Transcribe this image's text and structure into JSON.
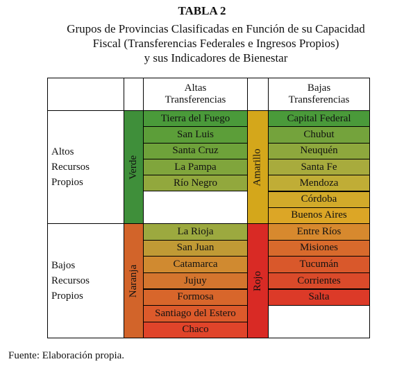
{
  "header": {
    "title": "TABLA 2",
    "subtitle": [
      "Grupos de Provincias Clasificadas en Función de su Capacidad",
      "Fiscal (Transferencias Federales e Ingresos Propios)",
      "y sus Indicadores de Bienestar"
    ]
  },
  "table": {
    "column_headers": [
      [
        "Altas",
        "Transferencias"
      ],
      [
        "Bajas",
        "Transferencias"
      ]
    ],
    "groups": [
      {
        "label": "Altos Recursos Propios",
        "left": {
          "band": {
            "label": "Verde",
            "color": "#3f8f3a"
          },
          "cells": [
            {
              "text": "Tierra del Fuego",
              "color": "#4a9a3a"
            },
            {
              "text": "San Luis",
              "color": "#5c9e39"
            },
            {
              "text": "Santa Cruz",
              "color": "#6ea23a"
            },
            {
              "text": "La Pampa",
              "color": "#80a53c"
            },
            {
              "text": "Río Negro",
              "color": "#92a83d"
            }
          ]
        },
        "right": {
          "band": {
            "label": "Amarillo",
            "color": "#d4a71b"
          },
          "cells": [
            {
              "text": "Capital Federal",
              "color": "#4a9a3a"
            },
            {
              "text": "Chubut",
              "color": "#74a33c"
            },
            {
              "text": "Neuquén",
              "color": "#8ea83d"
            },
            {
              "text": "Santa Fe",
              "color": "#a8ab3d"
            },
            {
              "text": "Mendoza",
              "color": "#c0ad36"
            },
            {
              "text": "Córdoba",
              "color": "#d2aa2a"
            },
            {
              "text": "Buenos Aires",
              "color": "#dca626"
            }
          ]
        }
      },
      {
        "label": "Bajos Recursos Propios",
        "left": {
          "band": {
            "label": "Naranja",
            "color": "#d2642a"
          },
          "cells": [
            {
              "text": "La Rioja",
              "color": "#9ca93f"
            },
            {
              "text": "San Juan",
              "color": "#c09a35"
            },
            {
              "text": "Catamarca",
              "color": "#d08a30"
            },
            {
              "text": "Jujuy",
              "color": "#d4752e"
            },
            {
              "text": "Formosa",
              "color": "#d8662b"
            },
            {
              "text": "Santiago del Estero",
              "color": "#dc5a2b"
            },
            {
              "text": "Chaco",
              "color": "#e0442a"
            }
          ]
        },
        "right": {
          "band": {
            "label": "Rojo",
            "color": "#d92a25"
          },
          "cells": [
            {
              "text": "Entre Ríos",
              "color": "#d7892e"
            },
            {
              "text": "Misiones",
              "color": "#d86a2c"
            },
            {
              "text": "Tucumán",
              "color": "#d9582b"
            },
            {
              "text": "Corrientes",
              "color": "#da4a2a"
            },
            {
              "text": "Salta",
              "color": "#dc3a28"
            }
          ]
        }
      }
    ]
  },
  "footer": "Fuente: Elaboración propia."
}
